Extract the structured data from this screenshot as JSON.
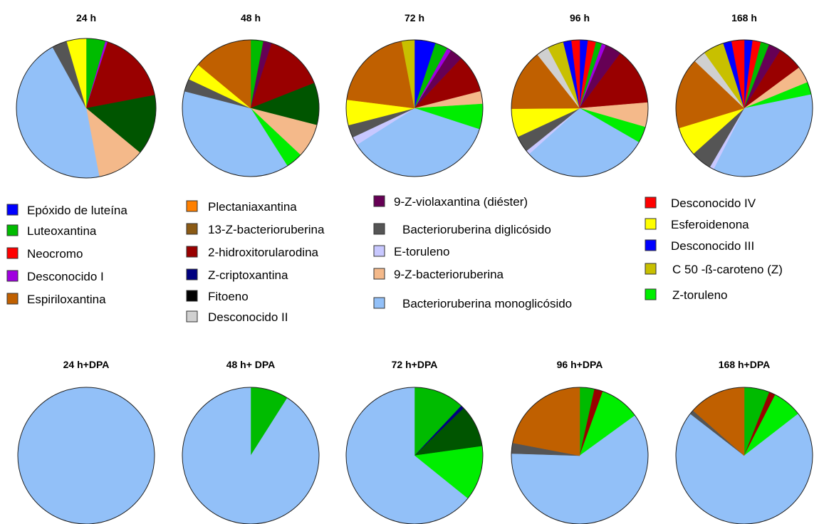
{
  "colors": {
    "epoxido_luteina": "#0000ff",
    "luteoxantina": "#00bb00",
    "neocromo": "#ff0000",
    "desconocido_i": "#a000e0",
    "espiriloxantina": "#c06000",
    "plectaniaxantina": "#ff8000",
    "bacterioruberina_13z": "#8b5a14",
    "hidroxitorularodina": "#990000",
    "z_criptoxantina": "#000080",
    "fitoeno": "#000000",
    "desconocido_ii": "#d0d0d0",
    "violaxantina_9z": "#660055",
    "bacterioruberina_diglicosido": "#555555",
    "e_toruleno": "#c8c8ff",
    "bacterioruberina_9z": "#f4b98a",
    "bacterioruberina_monoglicosido": "#92c0f8",
    "desconocido_iv": "#ff0000",
    "esferoidenona": "#ffff00",
    "desconocido_iii": "#0000ff",
    "c50_caroteno_z": "#c8c000",
    "z_toruleno": "#00ee00",
    "dark_green": "#005500"
  },
  "legend": [
    {
      "label": "Epóxido de luteína",
      "color": "#0000ff"
    },
    {
      "label": "Luteoxantina",
      "color": "#00bb00"
    },
    {
      "label": "Neocromo",
      "color": "#ff0000"
    },
    {
      "label": "Desconocido I",
      "color": "#a000e0"
    },
    {
      "label": "Espiriloxantina",
      "color": "#c06000"
    },
    {
      "label": "Plectaniaxantina",
      "color": "#ff8000"
    },
    {
      "label": "13-Z-bacterioruberina",
      "color": "#8b5a14"
    },
    {
      "label": "2-hidroxitorularodina",
      "color": "#990000"
    },
    {
      "label": "Z-criptoxantina",
      "color": "#000080"
    },
    {
      "label": "Fitoeno",
      "color": "#000000"
    },
    {
      "label": "Desconocido II",
      "color": "#d0d0d0"
    },
    {
      "label": "9-Z-violaxantina (diéster)",
      "color": "#660055"
    },
    {
      "label": "Bacterioruberina diglicósido",
      "color": "#555555"
    },
    {
      "label": "E-toruleno",
      "color": "#c8c8ff"
    },
    {
      "label": "9-Z-bacterioruberina",
      "color": "#f4b98a"
    },
    {
      "label": "Bacterioruberina monoglicósido",
      "color": "#92c0f8"
    },
    {
      "label": "Desconocido IV",
      "color": "#ff0000"
    },
    {
      "label": "Esferoidenona",
      "color": "#ffff00"
    },
    {
      "label": "Desconocido III",
      "color": "#0000ff"
    },
    {
      "label": "C 50 -ß-caroteno (Z)",
      "color": "#c8c000"
    },
    {
      "label": "Z-toruleno",
      "color": "#00ee00"
    }
  ],
  "chart_data": [
    {
      "type": "pie",
      "title": "24 h",
      "slices": [
        {
          "color": "#00bb00",
          "value": 4.5
        },
        {
          "color": "#a000e0",
          "value": 0.5
        },
        {
          "color": "#990000",
          "value": 17
        },
        {
          "color": "#005500",
          "value": 14
        },
        {
          "color": "#f4b98a",
          "value": 11
        },
        {
          "color": "#92c0f8",
          "value": 45
        },
        {
          "color": "#555555",
          "value": 3.5
        },
        {
          "color": "#ffff00",
          "value": 4.5
        }
      ]
    },
    {
      "type": "pie",
      "title": "48 h",
      "slices": [
        {
          "color": "#00bb00",
          "value": 3
        },
        {
          "color": "#660055",
          "value": 2
        },
        {
          "color": "#990000",
          "value": 14
        },
        {
          "color": "#005500",
          "value": 10
        },
        {
          "color": "#f4b98a",
          "value": 8
        },
        {
          "color": "#00ee00",
          "value": 4
        },
        {
          "color": "#92c0f8",
          "value": 38
        },
        {
          "color": "#555555",
          "value": 3
        },
        {
          "color": "#ffff00",
          "value": 4
        },
        {
          "color": "#c06000",
          "value": 14
        }
      ]
    },
    {
      "type": "pie",
      "title": "72 h",
      "slices": [
        {
          "color": "#0000ff",
          "value": 5
        },
        {
          "color": "#00bb00",
          "value": 3
        },
        {
          "color": "#a000e0",
          "value": 1
        },
        {
          "color": "#660055",
          "value": 3
        },
        {
          "color": "#990000",
          "value": 9
        },
        {
          "color": "#f4b98a",
          "value": 3
        },
        {
          "color": "#00ee00",
          "value": 6
        },
        {
          "color": "#92c0f8",
          "value": 36
        },
        {
          "color": "#c8c8ff",
          "value": 2
        },
        {
          "color": "#555555",
          "value": 3
        },
        {
          "color": "#ffff00",
          "value": 6
        },
        {
          "color": "#c06000",
          "value": 20
        },
        {
          "color": "#c8c000",
          "value": 3
        }
      ]
    },
    {
      "type": "pie",
      "title": "96 h",
      "slices": [
        {
          "color": "#0000ff",
          "value": 2
        },
        {
          "color": "#ff0000",
          "value": 2
        },
        {
          "color": "#00bb00",
          "value": 1.5
        },
        {
          "color": "#a000e0",
          "value": 1
        },
        {
          "color": "#660055",
          "value": 4
        },
        {
          "color": "#990000",
          "value": 14
        },
        {
          "color": "#f4b98a",
          "value": 6
        },
        {
          "color": "#00ee00",
          "value": 4
        },
        {
          "color": "#92c0f8",
          "value": 31
        },
        {
          "color": "#c8c8ff",
          "value": 1
        },
        {
          "color": "#555555",
          "value": 4
        },
        {
          "color": "#ffff00",
          "value": 7
        },
        {
          "color": "#c06000",
          "value": 15
        },
        {
          "color": "#d0d0d0",
          "value": 3
        },
        {
          "color": "#c8c000",
          "value": 4
        },
        {
          "color": "#0000ff",
          "value": 2
        },
        {
          "color": "#ff0000",
          "value": 2
        }
      ]
    },
    {
      "type": "pie",
      "title": "168 h",
      "slices": [
        {
          "color": "#0000ff",
          "value": 2
        },
        {
          "color": "#ff0000",
          "value": 2
        },
        {
          "color": "#00bb00",
          "value": 2
        },
        {
          "color": "#660055",
          "value": 3
        },
        {
          "color": "#990000",
          "value": 6
        },
        {
          "color": "#f4b98a",
          "value": 4
        },
        {
          "color": "#00ee00",
          "value": 3
        },
        {
          "color": "#92c0f8",
          "value": 36
        },
        {
          "color": "#c8c8ff",
          "value": 1
        },
        {
          "color": "#555555",
          "value": 5
        },
        {
          "color": "#ffff00",
          "value": 7
        },
        {
          "color": "#c06000",
          "value": 17
        },
        {
          "color": "#d0d0d0",
          "value": 3
        },
        {
          "color": "#c8c000",
          "value": 5
        },
        {
          "color": "#0000ff",
          "value": 2
        },
        {
          "color": "#ff0000",
          "value": 3
        }
      ]
    },
    {
      "type": "pie",
      "title": "24 h+DPA",
      "slices": [
        {
          "color": "#92c0f8",
          "value": 100
        }
      ]
    },
    {
      "type": "pie",
      "title": "48 h+ DPA",
      "slices": [
        {
          "color": "#00bb00",
          "value": 9
        },
        {
          "color": "#92c0f8",
          "value": 91
        }
      ]
    },
    {
      "type": "pie",
      "title": "72 h+DPA",
      "slices": [
        {
          "color": "#00bb00",
          "value": 12
        },
        {
          "color": "#000080",
          "value": 0.8
        },
        {
          "color": "#005500",
          "value": 10
        },
        {
          "color": "#00ee00",
          "value": 13
        },
        {
          "color": "#92c0f8",
          "value": 64.2
        }
      ]
    },
    {
      "type": "pie",
      "title": "96 h+DPA",
      "slices": [
        {
          "color": "#00bb00",
          "value": 3.5
        },
        {
          "color": "#990000",
          "value": 2
        },
        {
          "color": "#00ee00",
          "value": 9.5
        },
        {
          "color": "#92c0f8",
          "value": 60.5
        },
        {
          "color": "#555555",
          "value": 2.5
        },
        {
          "color": "#c06000",
          "value": 22
        }
      ]
    },
    {
      "type": "pie",
      "title": "168 h+DPA",
      "slices": [
        {
          "color": "#00bb00",
          "value": 6
        },
        {
          "color": "#990000",
          "value": 1.5
        },
        {
          "color": "#00ee00",
          "value": 7
        },
        {
          "color": "#92c0f8",
          "value": 71
        },
        {
          "color": "#555555",
          "value": 1
        },
        {
          "color": "#c06000",
          "value": 13.5
        }
      ]
    }
  ]
}
